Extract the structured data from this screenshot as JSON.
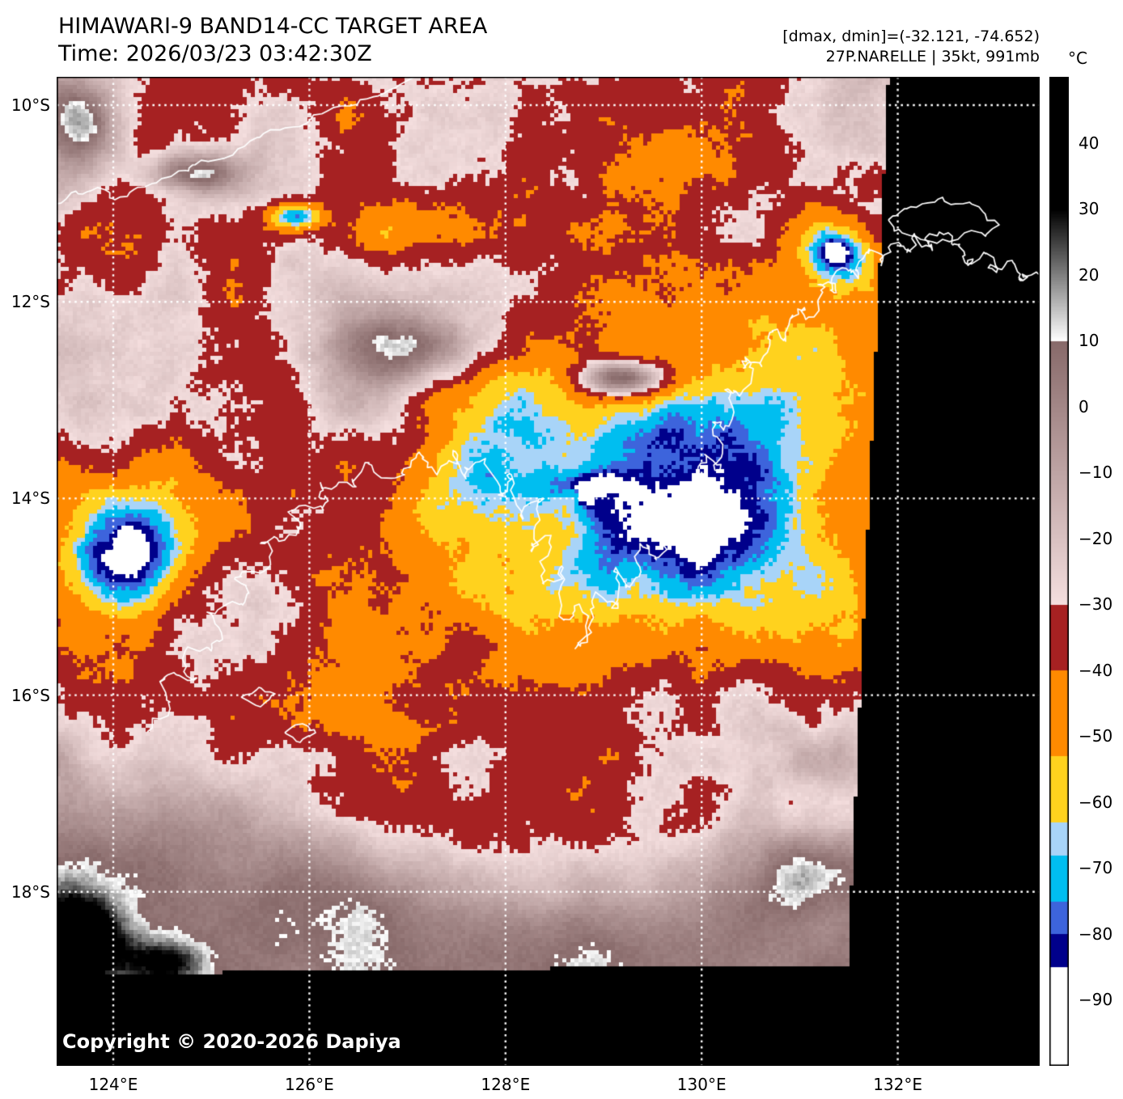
{
  "header": {
    "title": "HIMAWARI-9 BAND14-CC TARGET AREA",
    "time": "Time: 2026/03/23 03:42:30Z",
    "range_info": "[dmax, dmin]=(-32.121, -74.652)",
    "storm_info": "27P.NARELLE | 35kt, 991mb"
  },
  "colorbar": {
    "unit": "°C",
    "domain_min": -100,
    "domain_max": 50,
    "ticks": [
      {
        "label": "40",
        "value": 40
      },
      {
        "label": "30",
        "value": 30
      },
      {
        "label": "20",
        "value": 20
      },
      {
        "label": "10",
        "value": 10
      },
      {
        "label": "0",
        "value": 0
      },
      {
        "label": "−10",
        "value": -10
      },
      {
        "label": "−20",
        "value": -20
      },
      {
        "label": "−30",
        "value": -30
      },
      {
        "label": "−40",
        "value": -40
      },
      {
        "label": "−50",
        "value": -50
      },
      {
        "label": "−60",
        "value": -60
      },
      {
        "label": "−70",
        "value": -70
      },
      {
        "label": "−80",
        "value": -80
      },
      {
        "label": "−90",
        "value": -90
      }
    ],
    "segments": [
      {
        "from": 30,
        "to": 50,
        "type": "solid",
        "color": "#000000"
      },
      {
        "from": 10,
        "to": 30,
        "type": "gradient",
        "color_low": "#ffffff",
        "color_high": "#000000"
      },
      {
        "from": -30,
        "to": 10,
        "type": "gradient",
        "color_low": "#f5dfdf",
        "color_high": "#886a6a"
      },
      {
        "from": -40,
        "to": -30,
        "type": "solid",
        "color": "#a62122"
      },
      {
        "from": -53,
        "to": -40,
        "type": "solid",
        "color": "#ff8a00"
      },
      {
        "from": -63,
        "to": -53,
        "type": "solid",
        "color": "#ffd21e"
      },
      {
        "from": -68,
        "to": -63,
        "type": "solid",
        "color": "#a8d4f8"
      },
      {
        "from": -75,
        "to": -68,
        "type": "solid",
        "color": "#00bef0"
      },
      {
        "from": -80,
        "to": -75,
        "type": "solid",
        "color": "#3d64dc"
      },
      {
        "from": -85,
        "to": -80,
        "type": "solid",
        "color": "#00008b"
      },
      {
        "from": -100,
        "to": -85,
        "type": "solid",
        "color": "#ffffff"
      }
    ]
  },
  "axes": {
    "lat_ticks": [
      {
        "label": "10°S",
        "deg": -10
      },
      {
        "label": "12°S",
        "deg": -12
      },
      {
        "label": "14°S",
        "deg": -14
      },
      {
        "label": "16°S",
        "deg": -16
      },
      {
        "label": "18°S",
        "deg": -18
      }
    ],
    "lon_ticks": [
      {
        "label": "124°E",
        "deg": 124
      },
      {
        "label": "126°E",
        "deg": 126
      },
      {
        "label": "128°E",
        "deg": 128
      },
      {
        "label": "130°E",
        "deg": 130
      },
      {
        "label": "132°E",
        "deg": 132
      }
    ]
  },
  "overlay": {
    "copyright": "Copyright © 2020-2026 Dapiya"
  },
  "colors": {
    "background": "#ffffff",
    "no_data": "#000000",
    "gridline": "#ffffff",
    "coastline": "#ffffff",
    "text": "#000000"
  }
}
